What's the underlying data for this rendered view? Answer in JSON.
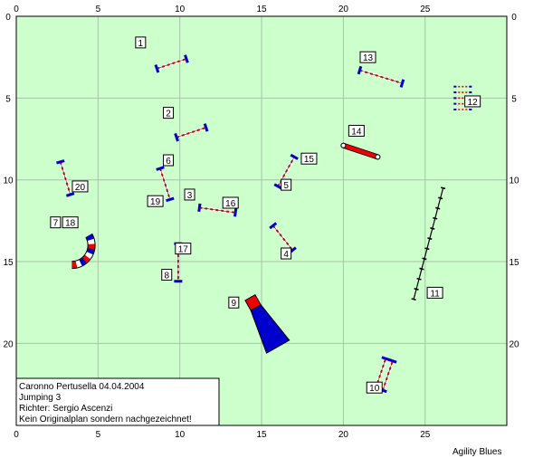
{
  "course": {
    "x_ticks": [
      0,
      5,
      10,
      15,
      20,
      25
    ],
    "y_ticks": [
      0,
      5,
      10,
      15,
      20
    ],
    "extent": {
      "x": [
        0,
        30
      ],
      "y": [
        0,
        24
      ]
    },
    "grid": true,
    "colors": {
      "field": "#ccffcc",
      "grid": "#a6c4a6",
      "bar_blue": "#0000cc",
      "bar_red": "#ee0000",
      "border": "#000000"
    }
  },
  "info": {
    "line1": "Caronno Pertusella 04.04.2004",
    "line2": "Jumping 3",
    "line3": "Richter: Sergio Ascenzi",
    "line4": "Kein Originalplan sondern nachgezeichnet!"
  },
  "credit": "Agility Blues",
  "obstacles": {
    "hurdles": [
      {
        "x1": 8.6,
        "y1": 3.2,
        "x2": 10.4,
        "y2": 2.6
      },
      {
        "x1": 9.8,
        "y1": 7.4,
        "x2": 11.6,
        "y2": 6.8
      },
      {
        "x1": 11.2,
        "y1": 11.7,
        "x2": 13.4,
        "y2": 12.0
      },
      {
        "x1": 15.7,
        "y1": 12.8,
        "x2": 16.9,
        "y2": 14.3
      },
      {
        "x1": 16.0,
        "y1": 10.4,
        "x2": 17.0,
        "y2": 8.6
      },
      {
        "x1": 9.9,
        "y1": 13.9,
        "x2": 9.9,
        "y2": 16.2
      },
      {
        "x1": 8.8,
        "y1": 9.3,
        "x2": 9.4,
        "y2": 11.2
      },
      {
        "x1": 21.0,
        "y1": 3.3,
        "x2": 23.6,
        "y2": 4.1
      },
      {
        "x1": 2.7,
        "y1": 8.9,
        "x2": 3.3,
        "y2": 10.9
      }
    ],
    "double_jump": {
      "x1": 22.2,
      "y1": 22.8,
      "x2": 22.8,
      "y2": 21.0,
      "gap": 0.45
    },
    "long_jump": {
      "x": 26.8,
      "y": 4.3,
      "w": 1.0,
      "h": 1.4,
      "boards": 5
    },
    "wall": {
      "x1": 20.0,
      "y1": 7.9,
      "x2": 22.1,
      "y2": 8.6
    },
    "weave": {
      "x1": 26.1,
      "y1": 10.5,
      "x2": 24.3,
      "y2": 17.3,
      "poles": 12
    },
    "tunnel": {
      "cx": 3.4,
      "cy": 14.0,
      "r": 1.2,
      "start_deg": 270,
      "end_deg": 30
    },
    "chute": {
      "x1": 14.3,
      "y1": 17.2,
      "x2": 16.0,
      "y2": 20.2,
      "w_barrel": 0.7,
      "w_end": 1.6
    }
  },
  "labels": [
    {
      "text": "1",
      "x": 7.6,
      "y": 1.6
    },
    {
      "text": "2",
      "x": 9.3,
      "y": 5.9
    },
    {
      "text": "3",
      "x": 10.6,
      "y": 10.9
    },
    {
      "text": "16",
      "x": 13.1,
      "y": 11.4
    },
    {
      "text": "4",
      "x": 16.5,
      "y": 14.5
    },
    {
      "text": "5",
      "x": 16.5,
      "y": 10.3
    },
    {
      "text": "15",
      "x": 17.9,
      "y": 8.7
    },
    {
      "text": "6",
      "x": 9.3,
      "y": 8.8
    },
    {
      "text": "19",
      "x": 8.5,
      "y": 11.3
    },
    {
      "text": "17",
      "x": 10.2,
      "y": 14.2
    },
    {
      "text": "8",
      "x": 9.2,
      "y": 15.8
    },
    {
      "text": "20",
      "x": 3.9,
      "y": 10.4
    },
    {
      "text": "7",
      "x": 2.4,
      "y": 12.6
    },
    {
      "text": "18",
      "x": 3.3,
      "y": 12.6
    },
    {
      "text": "9",
      "x": 13.3,
      "y": 17.5
    },
    {
      "text": "10",
      "x": 21.9,
      "y": 22.7
    },
    {
      "text": "11",
      "x": 25.6,
      "y": 16.9
    },
    {
      "text": "12",
      "x": 27.9,
      "y": 5.2
    },
    {
      "text": "13",
      "x": 21.5,
      "y": 2.5
    },
    {
      "text": "14",
      "x": 20.8,
      "y": 7.0
    }
  ]
}
